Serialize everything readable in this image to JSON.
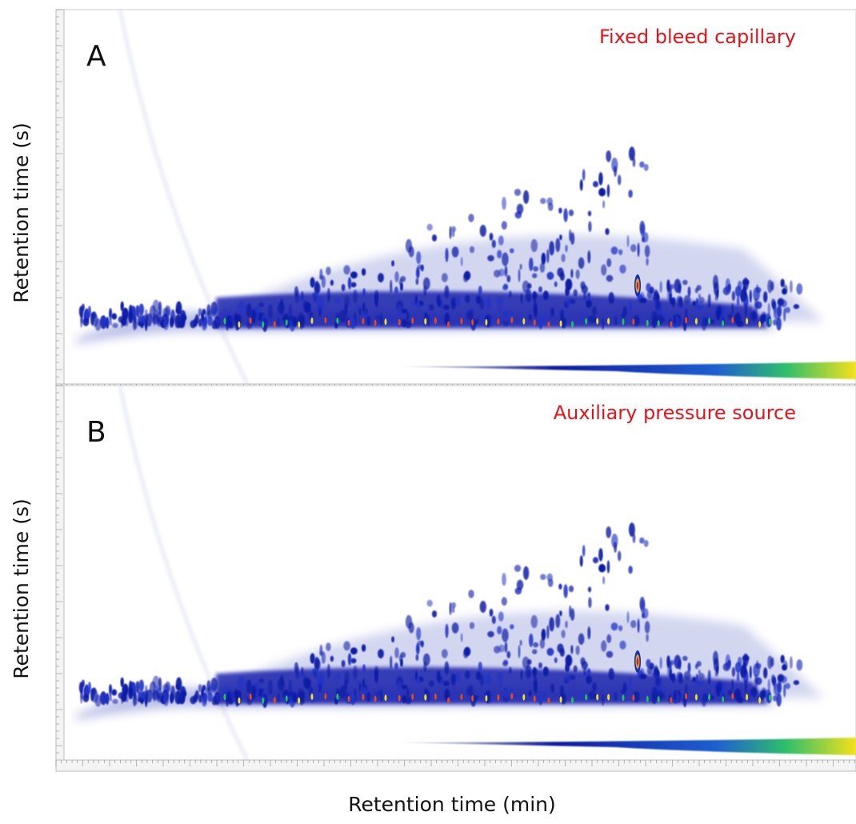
{
  "panels": [
    {
      "label": "A",
      "annotation": "Fixed bleed capillary",
      "y_label": "Retention time (s)"
    },
    {
      "label": "B",
      "annotation": "Auxiliary pressure source",
      "y_label": "Retention time (s)"
    }
  ],
  "x_label": "Retention time (min)"
}
